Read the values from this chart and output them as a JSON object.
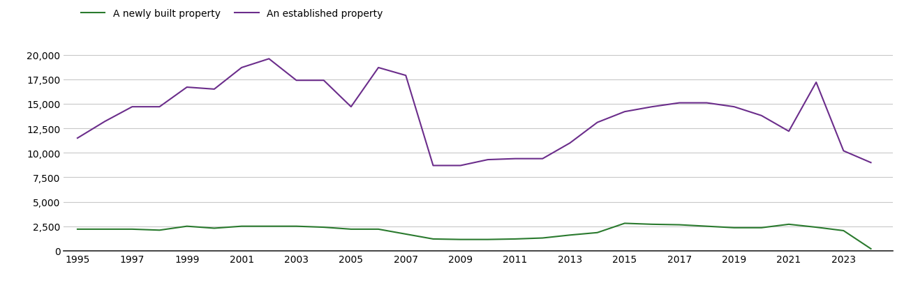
{
  "years": [
    1995,
    1996,
    1997,
    1998,
    1999,
    2000,
    2001,
    2002,
    2003,
    2004,
    2005,
    2006,
    2007,
    2008,
    2009,
    2010,
    2011,
    2012,
    2013,
    2014,
    2015,
    2016,
    2017,
    2018,
    2019,
    2020,
    2021,
    2022,
    2023,
    2024
  ],
  "new_homes": [
    2200,
    2200,
    2200,
    2100,
    2500,
    2300,
    2500,
    2500,
    2500,
    2400,
    2200,
    2200,
    1700,
    1200,
    1150,
    1150,
    1200,
    1300,
    1600,
    1850,
    2800,
    2700,
    2650,
    2500,
    2350,
    2350,
    2700,
    2400,
    2050,
    200
  ],
  "established_homes": [
    11500,
    13200,
    14700,
    14700,
    16700,
    16500,
    18700,
    19600,
    17400,
    17400,
    14700,
    18700,
    17900,
    8700,
    8700,
    9300,
    9400,
    9400,
    11000,
    13100,
    14200,
    14700,
    15100,
    15100,
    14700,
    13800,
    12200,
    17200,
    10200,
    9000
  ],
  "new_homes_color": "#2a7a2e",
  "established_homes_color": "#6b2d8b",
  "legend_new": "A newly built property",
  "legend_established": "An established property",
  "ylim": [
    0,
    21000
  ],
  "yticks": [
    0,
    2500,
    5000,
    7500,
    10000,
    12500,
    15000,
    17500,
    20000
  ],
  "xtick_labels": [
    "1995",
    "1997",
    "1999",
    "2001",
    "2003",
    "2005",
    "2007",
    "2009",
    "2011",
    "2013",
    "2015",
    "2017",
    "2019",
    "2021",
    "2023"
  ],
  "xtick_years": [
    1995,
    1997,
    1999,
    2001,
    2003,
    2005,
    2007,
    2009,
    2011,
    2013,
    2015,
    2017,
    2019,
    2021,
    2023
  ],
  "background_color": "#ffffff",
  "grid_color": "#c8c8c8",
  "line_width": 1.5,
  "tick_fontsize": 10,
  "legend_fontsize": 10
}
